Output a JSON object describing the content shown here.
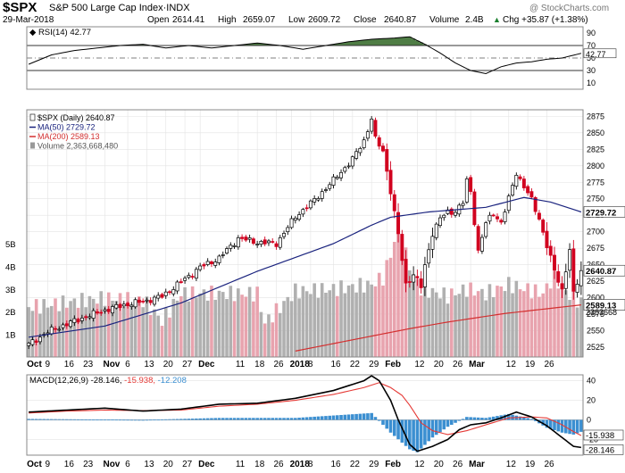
{
  "header": {
    "symbol": "$SPX",
    "name": "S&P 500 Large Cap Index",
    "exchange": "INDX",
    "date": "29-Mar-2018",
    "open_label": "Open",
    "open": "2614.41",
    "high_label": "High",
    "high": "2659.07",
    "low_label": "Low",
    "low": "2609.72",
    "close_label": "Close",
    "close": "2640.87",
    "volume_label": "Volume",
    "volume": "2.4B",
    "chg_label": "Chg",
    "chg": "+35.87 (+1.38%)",
    "arrow": "▲",
    "watermark": "@ StockCharts.com"
  },
  "colors": {
    "up_candle": "#ffffff",
    "down_candle": "#d1001f",
    "ma50": "#1a237e",
    "ma200": "#d32f2f",
    "volume_up": "#b0b0b0",
    "volume_down": "#e8a3ae",
    "rsi_fill": "#4f7d45",
    "macd_line": "#000000",
    "signal_line": "#e53935",
    "histogram": "#3b8fd1"
  },
  "chart_data": [
    {
      "type": "line",
      "name": "rsi_panel",
      "title": "RSI(14) 42.77",
      "ylim": [
        0,
        100
      ],
      "y_ticks": [
        10,
        30,
        50,
        70,
        90
      ],
      "reference_lines": [
        30,
        50,
        70
      ],
      "last_value_label": "42.77",
      "points": [
        [
          0,
          40
        ],
        [
          6,
          55
        ],
        [
          12,
          62
        ],
        [
          18,
          66
        ],
        [
          24,
          70
        ],
        [
          30,
          72
        ],
        [
          36,
          66
        ],
        [
          42,
          70
        ],
        [
          48,
          66
        ],
        [
          54,
          70
        ],
        [
          60,
          74
        ],
        [
          66,
          70
        ],
        [
          72,
          64
        ],
        [
          78,
          70
        ],
        [
          84,
          76
        ],
        [
          90,
          80
        ],
        [
          96,
          82
        ],
        [
          100,
          84
        ],
        [
          104,
          72
        ],
        [
          108,
          58
        ],
        [
          112,
          42
        ],
        [
          116,
          30
        ],
        [
          120,
          25
        ],
        [
          124,
          36
        ],
        [
          128,
          42
        ],
        [
          132,
          44
        ],
        [
          136,
          48
        ],
        [
          140,
          50
        ],
        [
          144,
          56
        ],
        [
          148,
          62
        ],
        [
          152,
          58
        ],
        [
          156,
          50
        ],
        [
          160,
          42
        ],
        [
          164,
          38
        ],
        [
          168,
          38
        ],
        [
          172,
          36
        ],
        [
          174,
          42.77
        ]
      ]
    },
    {
      "type": "bar",
      "name": "price_panel",
      "title": "$SPX (Daily) 2640.87",
      "ylim": [
        2510,
        2885
      ],
      "y_ticks": [
        2525,
        2550,
        2575,
        2600,
        2625,
        2650,
        2675,
        2700,
        2725,
        2750,
        2775,
        2800,
        2825,
        2850,
        2875
      ],
      "x_labels": [
        "Oct",
        "9",
        "16",
        "23",
        "Nov",
        "6",
        "13",
        "20",
        "27",
        "Dec",
        "11",
        "18",
        "26",
        "2018",
        "8",
        "16",
        "22",
        "29",
        "Feb",
        "12",
        "20",
        "26",
        "Mar",
        "12",
        "19",
        "26"
      ],
      "x_label_positions": [
        0,
        5,
        10,
        15,
        20,
        26,
        31,
        36,
        41,
        45,
        55,
        60,
        65,
        69,
        74,
        80,
        85,
        90,
        94,
        102,
        107,
        112,
        116,
        126,
        131,
        136
      ],
      "legend": [
        {
          "label": "$SPX (Daily) 2640.87",
          "color": "#000000"
        },
        {
          "label": "MA(50) 2729.72",
          "color": "#1a237e"
        },
        {
          "label": "MA(200) 2589.13",
          "color": "#d32f2f"
        },
        {
          "label": "Volume 2,363,668,480",
          "color": "#555555"
        }
      ],
      "right_labels": {
        "close": "2640.87",
        "ma50": "2729.72",
        "ma200": "2589.13",
        "volume": "2363668"
      },
      "volume_ticks": [
        "1B",
        "2B",
        "3B",
        "4B",
        "5B"
      ],
      "volume_max_b": 6,
      "close_anchors": [
        [
          0,
          2529
        ],
        [
          5,
          2548
        ],
        [
          10,
          2560
        ],
        [
          15,
          2571
        ],
        [
          20,
          2581
        ],
        [
          25,
          2589
        ],
        [
          30,
          2594
        ],
        [
          35,
          2602
        ],
        [
          40,
          2624
        ],
        [
          45,
          2646
        ],
        [
          50,
          2660
        ],
        [
          55,
          2690
        ],
        [
          60,
          2684
        ],
        [
          65,
          2682
        ],
        [
          70,
          2723
        ],
        [
          75,
          2748
        ],
        [
          80,
          2778
        ],
        [
          85,
          2810
        ],
        [
          88,
          2838
        ],
        [
          90,
          2872
        ],
        [
          91,
          2840
        ],
        [
          93,
          2822
        ],
        [
          95,
          2762
        ],
        [
          97,
          2695
        ],
        [
          99,
          2620
        ],
        [
          101,
          2636
        ],
        [
          103,
          2616
        ],
        [
          104,
          2648
        ],
        [
          106,
          2698
        ],
        [
          108,
          2720
        ],
        [
          110,
          2730
        ],
        [
          112,
          2731
        ],
        [
          114,
          2744
        ],
        [
          115,
          2777
        ],
        [
          116,
          2761
        ],
        [
          118,
          2670
        ],
        [
          120,
          2713
        ],
        [
          122,
          2729
        ],
        [
          124,
          2713
        ],
        [
          126,
          2750
        ],
        [
          128,
          2790
        ],
        [
          130,
          2768
        ],
        [
          132,
          2748
        ],
        [
          134,
          2720
        ],
        [
          136,
          2678
        ],
        [
          138,
          2641
        ],
        [
          140,
          2612
        ],
        [
          142,
          2672
        ],
        [
          143,
          2605
        ],
        [
          145,
          2641
        ]
      ],
      "ma50_anchors": [
        [
          0,
          2540
        ],
        [
          20,
          2557
        ],
        [
          40,
          2592
        ],
        [
          60,
          2640
        ],
        [
          80,
          2682
        ],
        [
          90,
          2710
        ],
        [
          95,
          2722
        ],
        [
          105,
          2730
        ],
        [
          120,
          2737
        ],
        [
          130,
          2752
        ],
        [
          137,
          2745
        ],
        [
          145,
          2730
        ]
      ],
      "ma200_anchors": [
        [
          70,
          2519
        ],
        [
          85,
          2536
        ],
        [
          100,
          2553
        ],
        [
          110,
          2563
        ],
        [
          125,
          2576
        ],
        [
          145,
          2589
        ]
      ],
      "volume_anchors": [
        [
          0,
          2.2
        ],
        [
          10,
          2.4
        ],
        [
          20,
          2.6
        ],
        [
          30,
          2.5
        ],
        [
          35,
          1.6
        ],
        [
          40,
          2.8
        ],
        [
          50,
          2.8
        ],
        [
          60,
          2.8
        ],
        [
          62,
          1.5
        ],
        [
          70,
          2.9
        ],
        [
          80,
          3.0
        ],
        [
          90,
          3.2
        ],
        [
          93,
          3.5
        ],
        [
          95,
          4.5
        ],
        [
          97,
          5.8
        ],
        [
          99,
          4.5
        ],
        [
          101,
          3.6
        ],
        [
          103,
          3.0
        ],
        [
          110,
          2.7
        ],
        [
          115,
          3.0
        ],
        [
          120,
          2.8
        ],
        [
          126,
          3.2
        ],
        [
          135,
          2.8
        ],
        [
          138,
          3.6
        ],
        [
          140,
          3.0
        ],
        [
          145,
          2.4
        ]
      ]
    },
    {
      "type": "line",
      "name": "macd_panel",
      "title": "MACD(12,26,9) -28.146, -15.938, -12.208",
      "ylim": [
        -36,
        46
      ],
      "y_ticks": [
        -20,
        0,
        20,
        40
      ],
      "series": [
        {
          "name": "MACD",
          "anchors": [
            [
              0,
              8
            ],
            [
              10,
              10
            ],
            [
              20,
              12
            ],
            [
              30,
              9
            ],
            [
              40,
              11
            ],
            [
              50,
              16
            ],
            [
              60,
              17
            ],
            [
              70,
              22
            ],
            [
              80,
              30
            ],
            [
              88,
              40
            ],
            [
              90,
              45
            ],
            [
              92,
              40
            ],
            [
              95,
              20
            ],
            [
              97,
              0
            ],
            [
              100,
              -25
            ],
            [
              102,
              -32
            ],
            [
              106,
              -27
            ],
            [
              110,
              -20
            ],
            [
              113,
              -10
            ],
            [
              116,
              -5
            ],
            [
              120,
              -3
            ],
            [
              124,
              2
            ],
            [
              128,
              8
            ],
            [
              132,
              3
            ],
            [
              136,
              -6
            ],
            [
              140,
              -18
            ],
            [
              143,
              -27
            ],
            [
              145,
              -28.146
            ]
          ]
        },
        {
          "name": "Signal",
          "anchors": [
            [
              0,
              7
            ],
            [
              10,
              9
            ],
            [
              20,
              10
            ],
            [
              30,
              9.5
            ],
            [
              40,
              10
            ],
            [
              50,
              14
            ],
            [
              60,
              16
            ],
            [
              70,
              20
            ],
            [
              80,
              26
            ],
            [
              88,
              33
            ],
            [
              92,
              38
            ],
            [
              95,
              33
            ],
            [
              98,
              25
            ],
            [
              100,
              15
            ],
            [
              103,
              -3
            ],
            [
              106,
              -11
            ],
            [
              110,
              -15
            ],
            [
              115,
              -11
            ],
            [
              120,
              -5
            ],
            [
              126,
              2
            ],
            [
              132,
              3
            ],
            [
              136,
              2
            ],
            [
              140,
              -5
            ],
            [
              143,
              -12
            ],
            [
              145,
              -15.938
            ]
          ]
        },
        {
          "name": "Histogram",
          "anchors": [
            [
              0,
              1
            ],
            [
              30,
              0
            ],
            [
              50,
              2
            ],
            [
              70,
              2
            ],
            [
              90,
              7
            ],
            [
              95,
              -13
            ],
            [
              100,
              -30
            ],
            [
              102,
              -33
            ],
            [
              106,
              -18
            ],
            [
              110,
              -7
            ],
            [
              115,
              3
            ],
            [
              120,
              2
            ],
            [
              126,
              6
            ],
            [
              132,
              1
            ],
            [
              136,
              -8
            ],
            [
              140,
              -13
            ],
            [
              143,
              -15
            ],
            [
              145,
              -12.208
            ]
          ]
        }
      ],
      "x_labels": [
        "Oct",
        "9",
        "16",
        "23",
        "Nov",
        "6",
        "13",
        "20",
        "27",
        "Dec",
        "11",
        "18",
        "26",
        "2018",
        "8",
        "16",
        "22",
        "29",
        "Feb",
        "12",
        "20",
        "26",
        "Mar",
        "12",
        "19",
        "26"
      ],
      "x_label_positions": [
        0,
        5,
        10,
        15,
        20,
        26,
        31,
        36,
        41,
        45,
        55,
        60,
        65,
        69,
        74,
        80,
        85,
        90,
        94,
        102,
        107,
        112,
        116,
        126,
        131,
        136
      ],
      "right_labels": {
        "signal": "-15.938",
        "macd": "-28.146"
      }
    }
  ]
}
